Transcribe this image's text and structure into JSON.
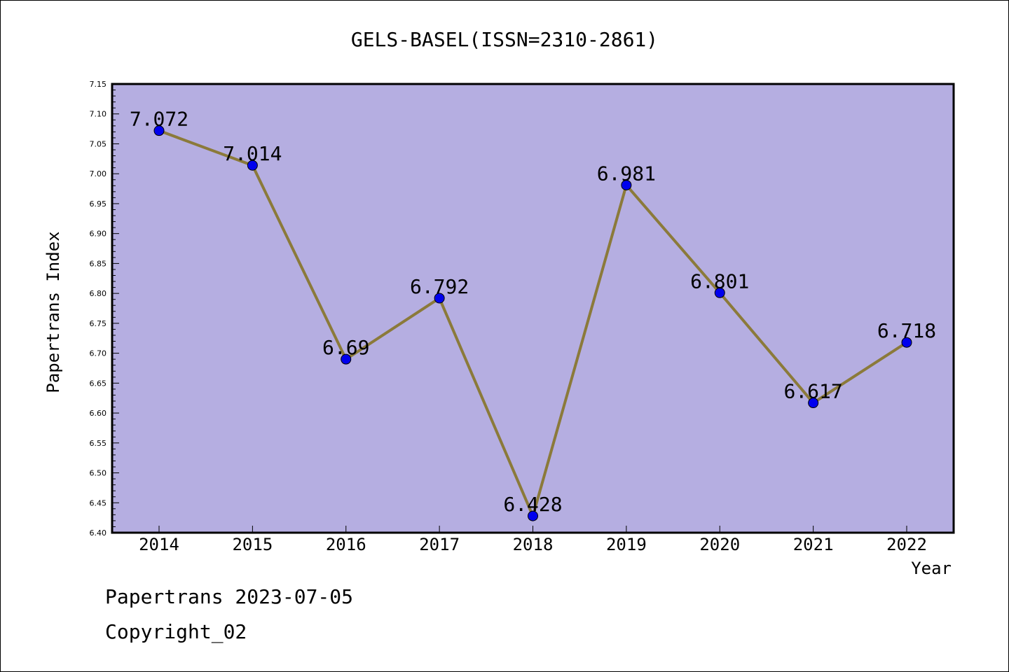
{
  "chart_data": {
    "type": "line",
    "title": "GELS-BASEL(ISSN=2310-2861)",
    "xlabel": "Year",
    "ylabel": "Papertrans Index",
    "x": [
      "2014",
      "2015",
      "2016",
      "2017",
      "2018",
      "2019",
      "2020",
      "2021",
      "2022"
    ],
    "values": [
      7.072,
      7.014,
      6.69,
      6.792,
      6.428,
      6.981,
      6.801,
      6.617,
      6.718
    ],
    "data_labels": [
      "7.072",
      "7.014",
      "6.69",
      "6.792",
      "6.428",
      "6.981",
      "6.801",
      "6.617",
      "6.718"
    ],
    "ylim": [
      6.4,
      7.15
    ],
    "yticks": [
      "6.40",
      "6.45",
      "6.50",
      "6.55",
      "6.60",
      "6.65",
      "6.70",
      "6.75",
      "6.80",
      "6.85",
      "6.90",
      "6.95",
      "7.00",
      "7.05",
      "7.10",
      "7.15"
    ],
    "grid": false,
    "colors": {
      "plot_background": "#b5aee1",
      "line": "#8b7a3a",
      "marker": "#0000ee"
    }
  },
  "footer": {
    "date_line": "Papertrans 2023-07-05",
    "copyright": "Copyright_02"
  }
}
